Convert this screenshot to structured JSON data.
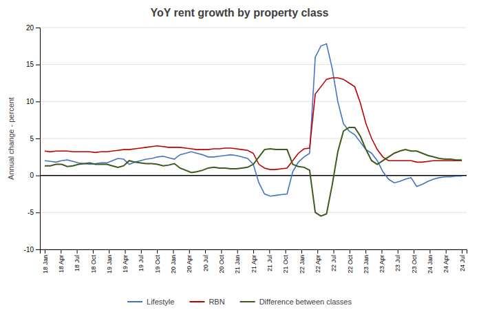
{
  "chart_data": {
    "type": "line",
    "title": "YoY rent growth by property class",
    "ylabel": "Annual change - percent",
    "xlim": [
      -0.3,
      26.3
    ],
    "xticks": [
      {
        "value": 0,
        "label": "18 Jan"
      },
      {
        "value": 1,
        "label": "18 Apr"
      },
      {
        "value": 2,
        "label": "18 Jul"
      },
      {
        "value": 3,
        "label": "18 Oct"
      },
      {
        "value": 4,
        "label": "19 Jan"
      },
      {
        "value": 5,
        "label": "19 Apr"
      },
      {
        "value": 6,
        "label": "19 Jul"
      },
      {
        "value": 7,
        "label": "19 Oct"
      },
      {
        "value": 8,
        "label": "20 Jan"
      },
      {
        "value": 9,
        "label": "20 Apr"
      },
      {
        "value": 10,
        "label": "20 Jul"
      },
      {
        "value": 11,
        "label": "20 Oct"
      },
      {
        "value": 12,
        "label": "21 Jan"
      },
      {
        "value": 13,
        "label": "21 Apr"
      },
      {
        "value": 14,
        "label": "21 Jul"
      },
      {
        "value": 15,
        "label": "21 Oct"
      },
      {
        "value": 16,
        "label": "22 Jan"
      },
      {
        "value": 17,
        "label": "22 Apr"
      },
      {
        "value": 18,
        "label": "22 Jul"
      },
      {
        "value": 19,
        "label": "22 Oct"
      },
      {
        "value": 20,
        "label": "23 Jan"
      },
      {
        "value": 21,
        "label": "23 Apr"
      },
      {
        "value": 22,
        "label": "23 Jul"
      },
      {
        "value": 23,
        "label": "23 Oct"
      },
      {
        "value": 24,
        "label": "24 Jan"
      },
      {
        "value": 25,
        "label": "24 Apr"
      },
      {
        "value": 26,
        "label": "24 Jul"
      }
    ],
    "ylim": [
      -10,
      20
    ],
    "yticks": [
      -10,
      -5,
      0,
      5,
      10,
      15,
      20
    ],
    "grid": true,
    "legend": "bottom",
    "x": [
      0,
      0.3514,
      0.7027,
      1.0541,
      1.4054,
      1.7568,
      2.1081,
      2.4595,
      2.8108,
      3.1622,
      3.5135,
      3.8649,
      4.2162,
      4.5676,
      4.9189,
      5.2703,
      5.6216,
      5.973,
      6.3243,
      6.6757,
      7.027,
      7.3784,
      7.7297,
      8.0811,
      8.4324,
      8.7838,
      9.1351,
      9.4865,
      9.8378,
      10.1892,
      10.5405,
      10.8919,
      11.2432,
      11.5946,
      11.9459,
      12.2973,
      12.6486,
      13,
      13.3514,
      13.7027,
      14.0541,
      14.4054,
      14.7568,
      15.1081,
      15.4595,
      15.8108,
      16.1622,
      16.5135,
      16.8649,
      17.2162,
      17.5676,
      17.9189,
      18.2703,
      18.6216,
      18.973,
      19.3243,
      19.6757,
      20.027,
      20.3784,
      20.7297,
      21.0811,
      21.4324,
      21.7838,
      22.1351,
      22.4865,
      22.8378,
      23.1892,
      23.5405,
      23.8919,
      24.2432,
      24.5946,
      24.9459,
      25.2973,
      25.6486,
      26
    ],
    "series": [
      {
        "name": "Lifestyle",
        "color": "#4472c4",
        "values": [
          2.0,
          1.9,
          1.8,
          2.0,
          2.1,
          1.9,
          1.7,
          1.6,
          1.5,
          1.6,
          1.7,
          1.7,
          2.0,
          2.3,
          2.2,
          1.5,
          1.8,
          2.0,
          2.2,
          2.3,
          2.5,
          2.6,
          2.4,
          2.2,
          2.8,
          3.0,
          3.2,
          3.0,
          2.8,
          2.5,
          2.5,
          2.6,
          2.7,
          2.8,
          2.7,
          2.5,
          2.3,
          1.5,
          -1.0,
          -2.5,
          -2.8,
          -2.7,
          -2.6,
          -2.5,
          0.5,
          1.8,
          2.5,
          3.0,
          16.0,
          17.5,
          17.8,
          14.5,
          10.0,
          7.0,
          6.0,
          5.5,
          4.5,
          3.5,
          3.0,
          2.0,
          0.5,
          -0.5,
          -1.0,
          -0.8,
          -0.5,
          -0.3,
          -1.5,
          -1.2,
          -0.8,
          -0.5,
          -0.3,
          -0.2,
          -0.2,
          -0.1,
          -0.1
        ]
      },
      {
        "name": "RBN",
        "color": "#c00000",
        "values": [
          3.3,
          3.2,
          3.3,
          3.3,
          3.3,
          3.2,
          3.2,
          3.2,
          3.2,
          3.1,
          3.2,
          3.2,
          3.3,
          3.4,
          3.5,
          3.5,
          3.6,
          3.7,
          3.8,
          3.9,
          4.0,
          3.9,
          3.8,
          3.8,
          3.8,
          3.7,
          3.6,
          3.5,
          3.5,
          3.5,
          3.6,
          3.6,
          3.7,
          3.7,
          3.6,
          3.5,
          3.4,
          3.0,
          1.5,
          1.0,
          0.8,
          0.8,
          0.9,
          1.0,
          2.0,
          3.0,
          3.6,
          3.7,
          11.0,
          12.0,
          13.0,
          13.2,
          13.2,
          13.0,
          12.5,
          12.0,
          9.8,
          7.0,
          5.0,
          3.5,
          2.5,
          2.0,
          2.0,
          2.0,
          2.0,
          2.0,
          1.8,
          1.8,
          1.9,
          2.0,
          2.0,
          2.0,
          2.0,
          2.0,
          2.0
        ]
      },
      {
        "name": "Difference between classes",
        "color": "#3d5a1e",
        "values": [
          1.3,
          1.3,
          1.5,
          1.5,
          1.2,
          1.3,
          1.5,
          1.6,
          1.7,
          1.5,
          1.5,
          1.5,
          1.3,
          1.1,
          1.3,
          2.0,
          1.8,
          1.7,
          1.6,
          1.6,
          1.5,
          1.3,
          1.4,
          1.6,
          1.0,
          0.7,
          0.4,
          0.5,
          0.7,
          1.0,
          1.1,
          1.0,
          1.0,
          0.9,
          0.9,
          1.0,
          1.1,
          1.5,
          2.5,
          3.5,
          3.6,
          3.5,
          3.5,
          3.5,
          1.5,
          1.2,
          1.1,
          0.7,
          -5.0,
          -5.5,
          -5.2,
          -1.3,
          3.2,
          6.0,
          6.5,
          6.5,
          5.3,
          3.5,
          2.0,
          1.5,
          2.0,
          2.5,
          3.0,
          3.3,
          3.5,
          3.3,
          3.3,
          3.0,
          2.7,
          2.5,
          2.3,
          2.2,
          2.2,
          2.1,
          2.1
        ]
      }
    ]
  }
}
